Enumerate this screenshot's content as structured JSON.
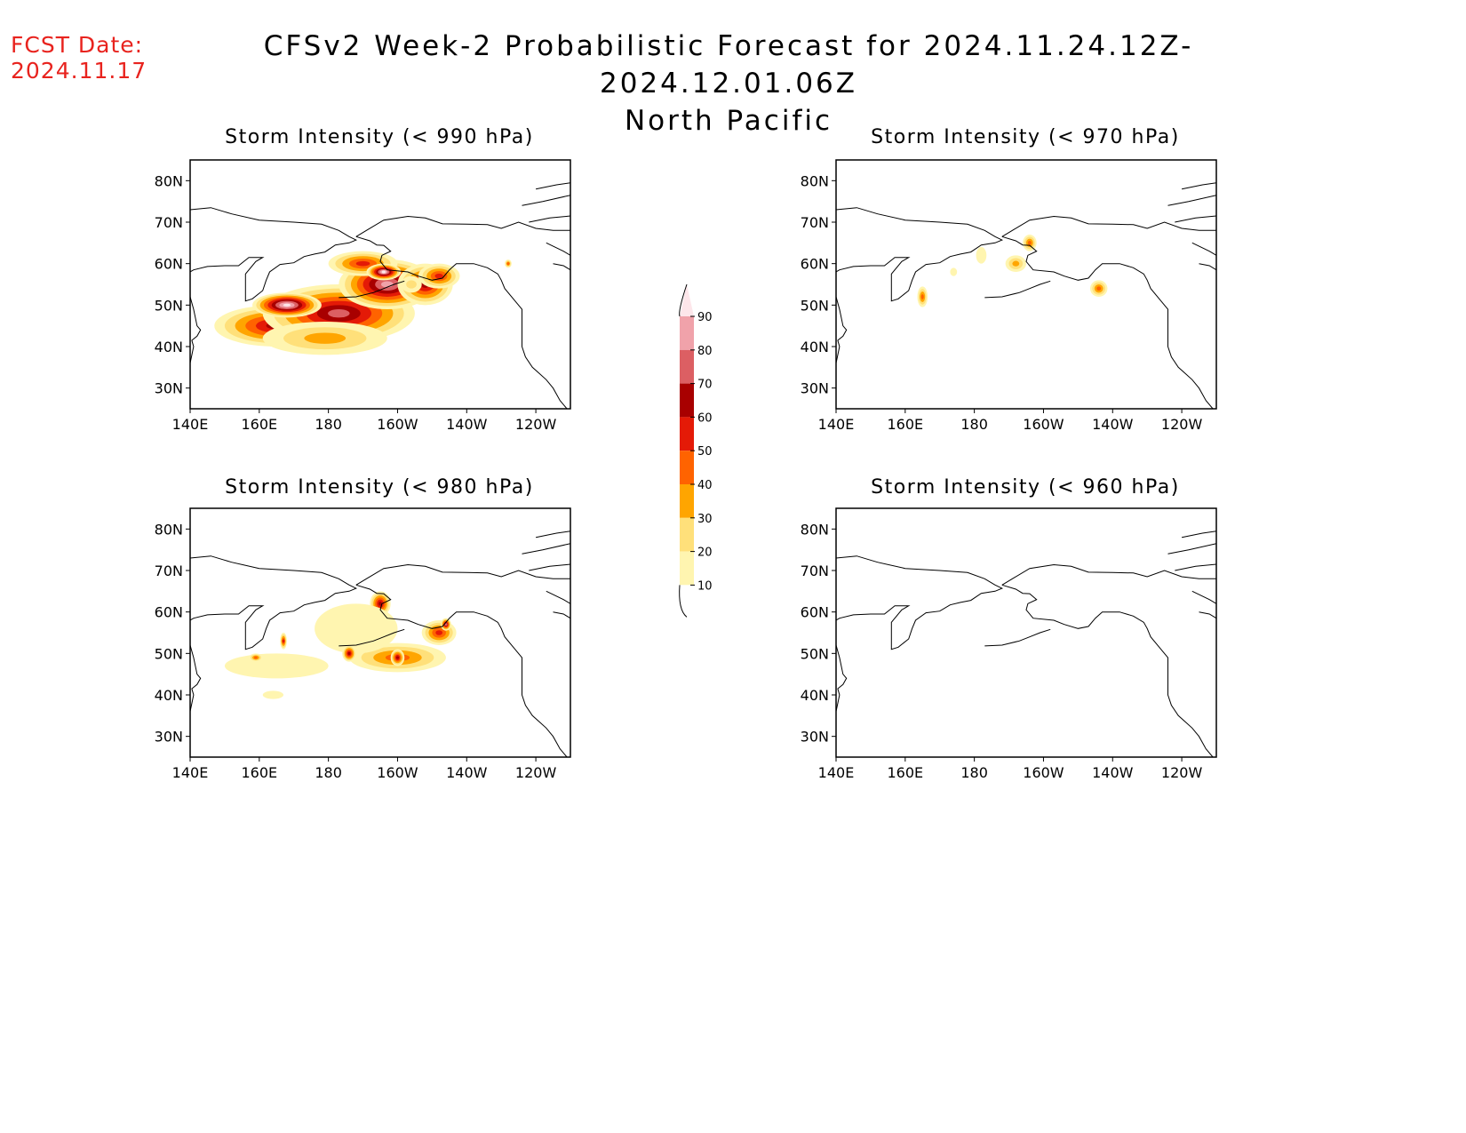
{
  "header": {
    "fcst_label": "FCST Date:",
    "fcst_date": "2024.11.17",
    "title": "CFSv2 Week-2 Probabilistic Forecast for 2024.11.24.12Z-2024.12.01.06Z",
    "region": "North Pacific"
  },
  "colors": {
    "10": "#fff5b0",
    "20": "#ffe07a",
    "30": "#ffa500",
    "40": "#ff6300",
    "50": "#e41a07",
    "60": "#a80000",
    "70": "#dc5f63",
    "80": "#f0a2aa",
    "90": "#fde6ea"
  },
  "lat_labels": [
    "80N",
    "70N",
    "60N",
    "50N",
    "40N",
    "30N"
  ],
  "lon_labels": [
    "140E",
    "160E",
    "180",
    "160W",
    "140W",
    "120W"
  ],
  "colorbar": {
    "levels": [
      "10",
      "20",
      "30",
      "40",
      "50",
      "60",
      "70",
      "80",
      "90"
    ]
  },
  "panels": [
    {
      "title": "Storm Intensity (< 990 hPa)",
      "blobs": [
        {
          "lon": 165,
          "lat": 45,
          "rx": 18,
          "ry": 5,
          "p": 60
        },
        {
          "lon": 183,
          "lat": 48,
          "rx": 22,
          "ry": 7,
          "p": 70
        },
        {
          "lon": 197,
          "lat": 55,
          "rx": 14,
          "ry": 6,
          "p": 85
        },
        {
          "lon": 208,
          "lat": 55,
          "rx": 8,
          "ry": 5,
          "p": 60
        },
        {
          "lon": 212,
          "lat": 57,
          "rx": 6,
          "ry": 3,
          "p": 50
        },
        {
          "lon": 190,
          "lat": 60,
          "rx": 10,
          "ry": 3,
          "p": 50
        },
        {
          "lon": 179,
          "lat": 42,
          "rx": 18,
          "ry": 4,
          "p": 30
        },
        {
          "lon": 168,
          "lat": 50,
          "rx": 10,
          "ry": 3,
          "p": 90
        },
        {
          "lon": 196,
          "lat": 58,
          "rx": 5,
          "ry": 2,
          "p": 95
        },
        {
          "lon": 204,
          "lat": 55,
          "rx": 3,
          "ry": 2,
          "p": 20
        },
        {
          "lon": 232,
          "lat": 60,
          "rx": 1,
          "ry": 1,
          "p": 40
        }
      ]
    },
    {
      "title": "Storm Intensity (< 970 hPa)",
      "blobs": [
        {
          "lon": 165,
          "lat": 52,
          "rx": 1.5,
          "ry": 2.5,
          "p": 40
        },
        {
          "lon": 192,
          "lat": 60,
          "rx": 3,
          "ry": 2,
          "p": 30
        },
        {
          "lon": 196,
          "lat": 65,
          "rx": 2,
          "ry": 2,
          "p": 40
        },
        {
          "lon": 216,
          "lat": 54,
          "rx": 2.5,
          "ry": 2,
          "p": 40
        },
        {
          "lon": 174,
          "lat": 58,
          "rx": 1,
          "ry": 1,
          "p": 10
        },
        {
          "lon": 182,
          "lat": 62,
          "rx": 1.5,
          "ry": 2,
          "p": 10
        }
      ]
    },
    {
      "title": "Storm Intensity (< 980 hPa)",
      "blobs": [
        {
          "lon": 200,
          "lat": 49,
          "rx": 14,
          "ry": 3.5,
          "p": 40
        },
        {
          "lon": 212,
          "lat": 55,
          "rx": 5,
          "ry": 3,
          "p": 50
        },
        {
          "lon": 195,
          "lat": 62,
          "rx": 3,
          "ry": 3,
          "p": 60
        },
        {
          "lon": 188,
          "lat": 56,
          "rx": 12,
          "ry": 6,
          "p": 15
        },
        {
          "lon": 165,
          "lat": 47,
          "rx": 15,
          "ry": 3,
          "p": 12
        },
        {
          "lon": 164,
          "lat": 40,
          "rx": 3,
          "ry": 1,
          "p": 12
        },
        {
          "lon": 159,
          "lat": 49,
          "rx": 2,
          "ry": 1,
          "p": 40
        },
        {
          "lon": 186,
          "lat": 50,
          "rx": 2,
          "ry": 2,
          "p": 60
        },
        {
          "lon": 200,
          "lat": 49,
          "rx": 2,
          "ry": 2,
          "p": 60
        },
        {
          "lon": 214,
          "lat": 57,
          "rx": 1.5,
          "ry": 1.5,
          "p": 70
        },
        {
          "lon": 167,
          "lat": 53,
          "rx": 1,
          "ry": 2,
          "p": 50
        }
      ]
    },
    {
      "title": "Storm Intensity (< 960 hPa)",
      "blobs": []
    }
  ]
}
